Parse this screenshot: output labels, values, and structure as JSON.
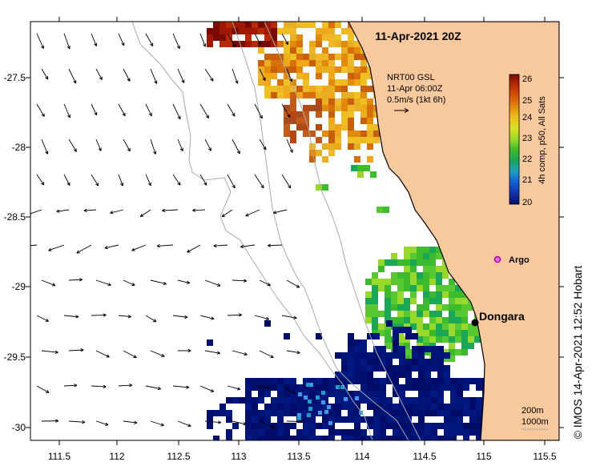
{
  "title": "11-Apr-2021 20Z",
  "annotation": {
    "product": "NRT00 GSL",
    "time": "11-Apr 06:00Z",
    "scale": "0.5m/s (1kt 6h)"
  },
  "colorbar": {
    "label": "4h comp, p50, All Sats",
    "ticks": [
      "26",
      "25",
      "24",
      "23",
      "22",
      "21",
      "20"
    ],
    "colors": [
      "#7a0a00",
      "#b82a00",
      "#d8560a",
      "#e48a0a",
      "#f0c020",
      "#d8e020",
      "#98d828",
      "#3cbc2c",
      "#18a858",
      "#1aa0c8",
      "#1060d8",
      "#1030a8",
      "#001070"
    ]
  },
  "axes": {
    "x_ticks": [
      "111.5",
      "112",
      "112.5",
      "113",
      "113.5",
      "114",
      "114.5",
      "115",
      "115.5"
    ],
    "y_ticks": [
      "-27.5",
      "-28",
      "-28.5",
      "-29",
      "-29.5",
      "-30"
    ]
  },
  "places": {
    "dongara": "Dongara",
    "argo": "Argo"
  },
  "legend": {
    "isobath_1": "200m",
    "isobath_2": "1000m"
  },
  "credit": "© IMOS 14-Apr-2021 12:52 Hobart",
  "colors": {
    "land": "#f9c99e",
    "coast": "#000000",
    "argo": "#d020d0",
    "ocean": "#ffffff"
  }
}
